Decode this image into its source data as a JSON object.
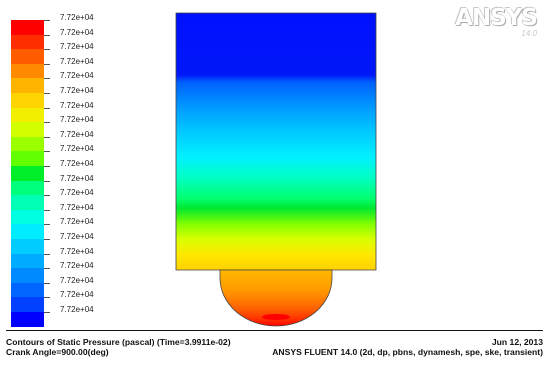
{
  "legend": {
    "labels": [
      "7.72e+04",
      "7.72e+04",
      "7.72e+04",
      "7.72e+04",
      "7.72e+04",
      "7.72e+04",
      "7.72e+04",
      "7.72e+04",
      "7.72e+04",
      "7.72e+04",
      "7.72e+04",
      "7.72e+04",
      "7.72e+04",
      "7.72e+04",
      "7.72e+04",
      "7.72e+04",
      "7.72e+04",
      "7.72e+04",
      "7.72e+04",
      "7.72e+04",
      "7.72e+04"
    ],
    "colors": [
      "#ff0000",
      "#ff2e00",
      "#ff5c00",
      "#ff8a00",
      "#ffb400",
      "#ffd400",
      "#f2f000",
      "#d2ff00",
      "#9cff00",
      "#62ff00",
      "#00ee2a",
      "#00ff7a",
      "#00ffb4",
      "#00ffe2",
      "#00ecff",
      "#00ccff",
      "#00acff",
      "#008aff",
      "#0066ff",
      "#0040ff",
      "#0000ff"
    ]
  },
  "logo": {
    "text": "ANSYS",
    "version": "14.0"
  },
  "footer": {
    "caption_line1": "Contours of Static Pressure (pascal)  (Time=3.9911e-02)",
    "caption_line2": "Crank Angle=900.00(deg)",
    "date": "Jun 12, 2013",
    "solver_info": "ANSYS FLUENT 14.0 (2d, dp, pbns, dynamesh, spe, ske, transient)"
  }
}
